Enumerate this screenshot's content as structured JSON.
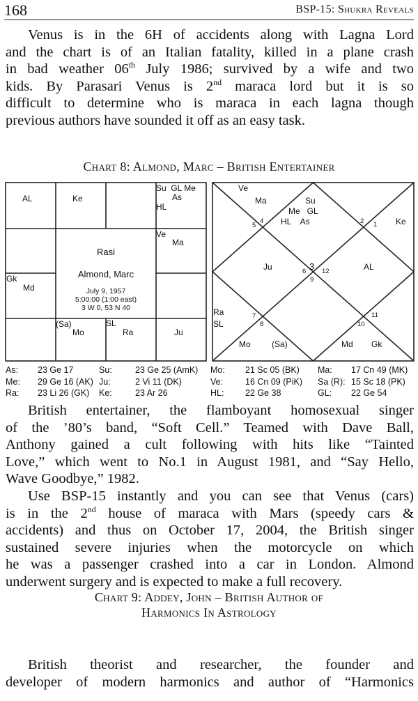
{
  "header": {
    "page_number": "168",
    "running_title": "BSP-15: Shukra Reveals"
  },
  "para1": [
    "Venus is in the 6H of accidents along with Lagna Lord",
    "and the chart is of an Italian fatality, killed in a plane crash",
    "in bad weather 06",
    "th",
    " July 1986; survived by a wife and two",
    "kids. By Parasari Venus is 2",
    "nd",
    " maraca lord but it is so",
    "difficult to determine who is maraca in each lagna though",
    "previous authors have sounded it off as an easy task."
  ],
  "chart8_title": "Chart 8: Almond, Marc – British Entertainer",
  "rasi": {
    "title": "Rasi",
    "name": "Almond, Marc",
    "date": "July 9, 1957",
    "time": "5:00:00 (1:00 east)",
    "coords": "3 W 0, 53 N 40",
    "cells": {
      "pi": "AL",
      "ar": "Ke",
      "ge1": "Su  GL Me",
      "ge2": "As",
      "ge3": "HL",
      "cn1": "Ve",
      "cn2": "Ma",
      "aq1": "Gk",
      "aq2": "Md",
      "sc1": "(Sa)",
      "sc2": "Mo",
      "li1": "SL",
      "li2": "Ra",
      "vi": "Ju"
    }
  },
  "north": {
    "h1": [
      "Su",
      "Me   GL",
      "HL    As"
    ],
    "ve": "Ve",
    "ma": "Ma",
    "ke": "Ke",
    "ju": "Ju",
    "al": "AL",
    "ra": "Ra",
    "sl": "SL",
    "mo": "Mo",
    "sa": "(Sa)",
    "md": "Md",
    "gk": "Gk",
    "nums": [
      "1",
      "2",
      "3",
      "4",
      "5",
      "6",
      "7",
      "8",
      "9",
      "10",
      "11",
      "12"
    ]
  },
  "positions": [
    [
      [
        "As:",
        "23 Ge 17"
      ],
      [
        "Su:",
        "23 Ge 25 (AmK)"
      ],
      [
        "Mo:",
        "21 Sc 05 (BK)"
      ],
      [
        "Ma:",
        "17 Cn 49 (MK)"
      ]
    ],
    [
      [
        "Me:",
        "29 Ge 16 (AK)"
      ],
      [
        "Ju:",
        "2 Vi 11 (DK)"
      ],
      [
        "Ve:",
        "16 Cn 09 (PiK)"
      ],
      [
        "Sa (R):",
        "15 Sc 18 (PK)"
      ]
    ],
    [
      [
        "Ra:",
        "23 Li 26 (GK)"
      ],
      [
        "Ke:",
        "23 Ar 26"
      ],
      [
        "HL:",
        "22 Ge 38"
      ],
      [
        "GL:",
        "22 Ge 54"
      ]
    ]
  ],
  "para2": [
    "British entertainer, the flamboyant homosexual singer",
    "of the ’80’s band, “Soft Cell.” Teamed with Dave Ball,",
    "Anthony gained a cult following with hits like “Tainted",
    "Love,” which went to No.1 in August 1981, and “Say Hello,",
    "Wave Goodbye,” 1982."
  ],
  "para3": [
    "Use BSP-15 instantly and you can see that Venus (cars)",
    "is in the 2",
    "nd",
    " house of maraca with Mars (speedy cars &",
    "accidents) and thus on October 17, 2004, the British singer",
    "sustained severe injuries when the motorcycle on which",
    "he was a passenger crashed into a car in London. Almond",
    "underwent surgery and is expected to make a full recovery."
  ],
  "chart9_title": [
    "Chart 9: Addey, John – British Author of",
    "Harmonics In Astrology"
  ],
  "para4": [
    "British theorist and researcher, the founder and",
    "developer of modern harmonics and author of “Harmonics"
  ]
}
